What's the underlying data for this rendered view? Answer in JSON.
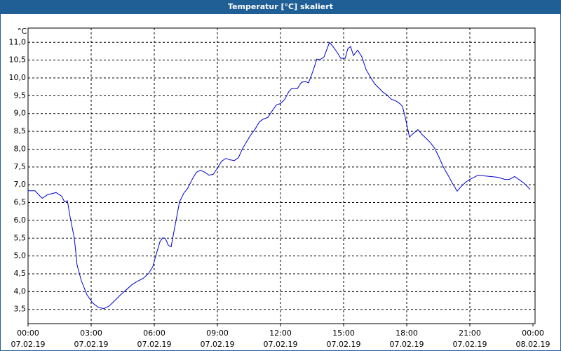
{
  "chart_data": {
    "type": "line",
    "title": "Temperatur [°C] skaliert",
    "y_label": "°C",
    "x": [
      0,
      0.33,
      0.67,
      0.93,
      1.33,
      1.6,
      1.73,
      1.87,
      2,
      2.2,
      2.33,
      2.53,
      2.8,
      3.07,
      3.33,
      3.6,
      3.87,
      4.13,
      4.4,
      4.67,
      4.93,
      5.2,
      5.47,
      5.73,
      5.93,
      6.07,
      6.27,
      6.4,
      6.53,
      6.67,
      6.8,
      7,
      7.2,
      7.4,
      7.6,
      7.8,
      8,
      8.2,
      8.4,
      8.6,
      8.8,
      9,
      9.2,
      9.4,
      9.6,
      9.8,
      10,
      10.2,
      10.4,
      10.6,
      10.8,
      11,
      11.2,
      11.4,
      11.6,
      11.8,
      12,
      12.2,
      12.4,
      12.53,
      12.8,
      13,
      13.2,
      13.33,
      13.53,
      13.73,
      13.87,
      14.07,
      14.33,
      14.47,
      14.67,
      14.87,
      15.07,
      15.2,
      15.33,
      15.47,
      15.67,
      15.87,
      16.07,
      16.27,
      16.47,
      16.67,
      16.87,
      17.07,
      17.27,
      17.47,
      17.67,
      17.8,
      17.93,
      18.13,
      18.33,
      18.53,
      18.73,
      18.93,
      19.13,
      19.33,
      19.53,
      19.73,
      20,
      20.2,
      20.4,
      20.6,
      20.8,
      21,
      21.2,
      21.4,
      21.67,
      22,
      22.33,
      22.67,
      22.87,
      23.13,
      23.33,
      23.6,
      23.8,
      23.87
    ],
    "series": [
      {
        "name": "Temperatur",
        "color": "#0000cc",
        "values": [
          6.83,
          6.83,
          6.62,
          6.72,
          6.78,
          6.68,
          6.52,
          6.55,
          6.09,
          5.5,
          4.75,
          4.31,
          3.91,
          3.68,
          3.56,
          3.52,
          3.6,
          3.75,
          3.91,
          4.05,
          4.19,
          4.29,
          4.37,
          4.51,
          4.7,
          5.0,
          5.4,
          5.51,
          5.49,
          5.3,
          5.26,
          5.89,
          6.52,
          6.76,
          6.91,
          7.15,
          7.35,
          7.41,
          7.35,
          7.27,
          7.29,
          7.47,
          7.66,
          7.74,
          7.7,
          7.68,
          7.76,
          8.02,
          8.22,
          8.41,
          8.57,
          8.77,
          8.85,
          8.89,
          9.07,
          9.24,
          9.28,
          9.4,
          9.62,
          9.7,
          9.7,
          9.88,
          9.9,
          9.86,
          10.17,
          10.53,
          10.51,
          10.59,
          11.0,
          10.9,
          10.74,
          10.55,
          10.55,
          10.82,
          10.88,
          10.63,
          10.78,
          10.59,
          10.23,
          10.03,
          9.84,
          9.72,
          9.6,
          9.52,
          9.4,
          9.36,
          9.28,
          9.2,
          8.89,
          8.34,
          8.45,
          8.55,
          8.41,
          8.3,
          8.18,
          8.02,
          7.78,
          7.51,
          7.23,
          7.01,
          6.82,
          6.96,
          7.07,
          7.15,
          7.21,
          7.27,
          7.25,
          7.23,
          7.21,
          7.15,
          7.15,
          7.23,
          7.15,
          7.03,
          6.91,
          6.87
        ]
      }
    ],
    "xlim": [
      0,
      24
    ],
    "xticks": [
      {
        "value": 0,
        "label": "00:00"
      },
      {
        "value": 3,
        "label": "03:00"
      },
      {
        "value": 6,
        "label": "06:00"
      },
      {
        "value": 9,
        "label": "09:00"
      },
      {
        "value": 12,
        "label": "12:00"
      },
      {
        "value": 15,
        "label": "15:00"
      },
      {
        "value": 18,
        "label": "18:00"
      },
      {
        "value": 21,
        "label": "21:00"
      },
      {
        "value": 24,
        "label": "00:00"
      }
    ],
    "xtick_dates": [
      "07.02.19",
      "07.02.19",
      "07.02.19",
      "07.02.19",
      "07.02.19",
      "07.02.19",
      "07.02.19",
      "07.02.19",
      "08.02.19"
    ],
    "ylim": [
      3.1,
      11.4
    ],
    "yticks": [
      {
        "value": 3.5,
        "label": "3,5"
      },
      {
        "value": 4,
        "label": "4,0"
      },
      {
        "value": 4.5,
        "label": "4,5"
      },
      {
        "value": 5,
        "label": "5,0"
      },
      {
        "value": 5.5,
        "label": "5,5"
      },
      {
        "value": 6,
        "label": "6,0"
      },
      {
        "value": 6.5,
        "label": "6,5"
      },
      {
        "value": 7,
        "label": "7,0"
      },
      {
        "value": 7.5,
        "label": "7,5"
      },
      {
        "value": 8,
        "label": "8,0"
      },
      {
        "value": 8.5,
        "label": "8,5"
      },
      {
        "value": 9,
        "label": "9,0"
      },
      {
        "value": 9.5,
        "label": "9,5"
      },
      {
        "value": 10,
        "label": "10,0"
      },
      {
        "value": 10.5,
        "label": "10,5"
      },
      {
        "value": 11,
        "label": "11,0"
      }
    ],
    "grid": true
  }
}
